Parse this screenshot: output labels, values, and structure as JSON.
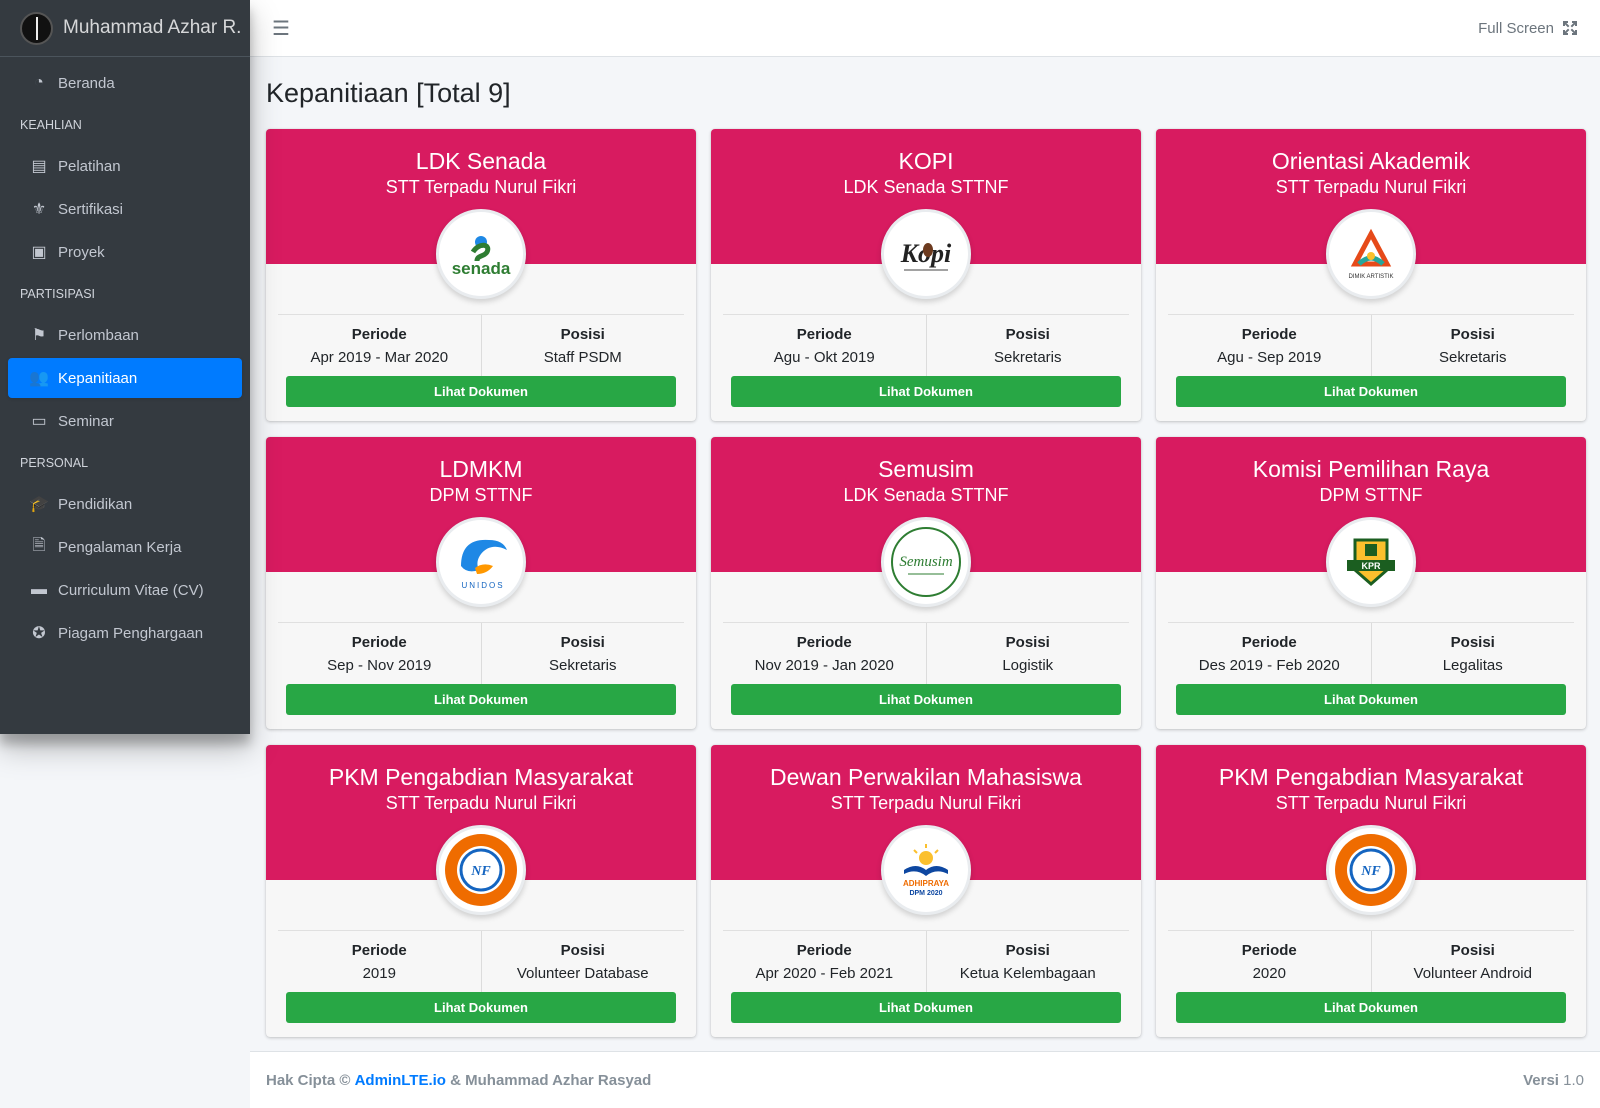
{
  "brand": {
    "name": "Muhammad Azhar R."
  },
  "topbar": {
    "fullscreen_label": "Full Screen",
    "menu_icon": "bars-icon",
    "fullscreen_icon": "expand-icon"
  },
  "sidebar": {
    "items": [
      {
        "type": "item",
        "label": "Beranda",
        "icon": "chart-pie-icon",
        "glyph": "◔"
      },
      {
        "type": "header",
        "label": "KEAHLIAN"
      },
      {
        "type": "item",
        "label": "Pelatihan",
        "icon": "book-icon",
        "glyph": "▤"
      },
      {
        "type": "item",
        "label": "Sertifikasi",
        "icon": "medal-icon",
        "glyph": "⚜"
      },
      {
        "type": "item",
        "label": "Proyek",
        "icon": "briefcase-icon",
        "glyph": "▣"
      },
      {
        "type": "header",
        "label": "PARTISIPASI"
      },
      {
        "type": "item",
        "label": "Perlombaan",
        "icon": "flag-checkered-icon",
        "glyph": "⚑"
      },
      {
        "type": "item",
        "label": "Kepanitiaan",
        "icon": "users-icon",
        "glyph": "👥",
        "active": true
      },
      {
        "type": "item",
        "label": "Seminar",
        "icon": "chalkboard-teacher-icon",
        "glyph": "▭"
      },
      {
        "type": "header",
        "label": "PERSONAL"
      },
      {
        "type": "item",
        "label": "Pendidikan",
        "icon": "user-graduate-icon",
        "glyph": "🎓"
      },
      {
        "type": "item",
        "label": "Pengalaman Kerja",
        "icon": "file-alt-icon",
        "glyph": "🗎"
      },
      {
        "type": "item",
        "label": "Curriculum Vitae (CV)",
        "icon": "id-card-icon",
        "glyph": "▬"
      },
      {
        "type": "item",
        "label": "Piagam Penghargaan",
        "icon": "award-icon",
        "glyph": "✪"
      }
    ]
  },
  "main": {
    "title": "Kepanitiaan [Total 9]",
    "labels": {
      "period": "Periode",
      "position": "Posisi",
      "button": "Lihat Dokumen"
    },
    "cards": [
      {
        "title": "LDK Senada",
        "subtitle": "STT Terpadu Nurul Fikri",
        "period": "Apr 2019 - Mar 2020",
        "position": "Staff PSDM",
        "logo": "senada",
        "logo_text": "senada"
      },
      {
        "title": "KOPI",
        "subtitle": "LDK Senada STTNF",
        "period": "Agu - Okt 2019",
        "position": "Sekretaris",
        "logo": "kopi",
        "logo_text": "Kopi"
      },
      {
        "title": "Orientasi Akademik",
        "subtitle": "STT Terpadu Nurul Fikri",
        "period": "Agu - Sep 2019",
        "position": "Sekretaris",
        "logo": "dimik",
        "logo_text": "DIMIK ARTISTIK"
      },
      {
        "title": "LDMKM",
        "subtitle": "DPM STTNF",
        "period": "Sep - Nov 2019",
        "position": "Sekretaris",
        "logo": "unidos",
        "logo_text": "UNIDOS"
      },
      {
        "title": "Semusim",
        "subtitle": "LDK Senada STTNF",
        "period": "Nov 2019 - Jan 2020",
        "position": "Logistik",
        "logo": "semusim",
        "logo_text": "Semusim"
      },
      {
        "title": "Komisi Pemilihan Raya",
        "subtitle": "DPM STTNF",
        "period": "Des 2019 - Feb 2020",
        "position": "Legalitas",
        "logo": "kpr",
        "logo_text": "KPR"
      },
      {
        "title": "PKM Pengabdian Masyarakat",
        "subtitle": "STT Terpadu Nurul Fikri",
        "period": "2019",
        "position": "Volunteer Database",
        "logo": "cbc",
        "logo_text": "NF"
      },
      {
        "title": "Dewan Perwakilan Mahasiswa",
        "subtitle": "STT Terpadu Nurul Fikri",
        "period": "Apr 2020 - Feb 2021",
        "position": "Ketua Kelembagaan",
        "logo": "adhipraya",
        "logo_text": "ADHIPRAYA",
        "logo_text2": "DPM 2020"
      },
      {
        "title": "PKM Pengabdian Masyarakat",
        "subtitle": "STT Terpadu Nurul Fikri",
        "period": "2020",
        "position": "Volunteer Android",
        "logo": "cbc",
        "logo_text": "NF"
      }
    ]
  },
  "footer": {
    "copyright_prefix": "Hak Cipta ©",
    "link_text": "AdminLTE.io",
    "owner": "& Muhammad Azhar Rasyad",
    "version_label": "Versi",
    "version_value": "1.0"
  },
  "colors": {
    "sidebar_bg": "#343a40",
    "active": "#007bff",
    "card_header": "#d81b60",
    "button": "#28a745"
  }
}
